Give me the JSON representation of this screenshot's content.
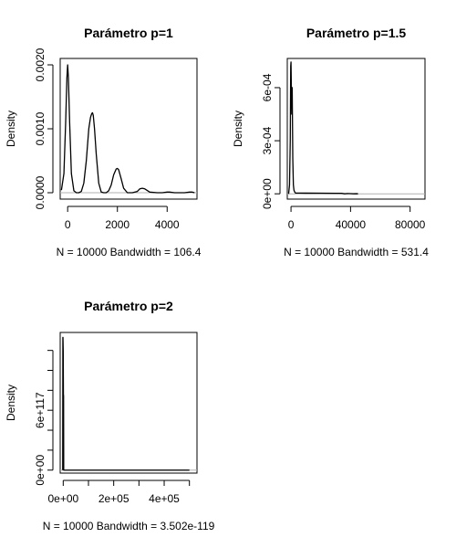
{
  "chart_data": [
    {
      "type": "line",
      "title": "Parámetro p=1",
      "ylabel": "Density",
      "xlabel": "N = 10000   Bandwidth = 106.4",
      "xlim": [
        -300,
        5200
      ],
      "ylim": [
        -0.0001,
        0.0021
      ],
      "xticks": [
        0,
        2000,
        4000
      ],
      "xtick_labels": [
        "0",
        "2000",
        "4000"
      ],
      "yticks": [
        0,
        0.001,
        0.002
      ],
      "ytick_labels": [
        "0.0000",
        "0.0010",
        "0.0020"
      ],
      "grid": false,
      "series": [
        {
          "x": [
            -250,
            -150,
            -80,
            -30,
            0,
            30,
            80,
            150,
            250,
            350,
            450,
            550,
            650,
            750,
            850,
            920,
            970,
            1000,
            1030,
            1080,
            1150,
            1250,
            1350,
            1450,
            1550,
            1650,
            1750,
            1850,
            1950,
            2000,
            2050,
            2150,
            2250,
            2400,
            2600,
            2800,
            2900,
            3000,
            3100,
            3300,
            3600,
            3800,
            4000,
            4100,
            4300,
            4700,
            4900,
            5000,
            5100
          ],
          "y": [
            4e-05,
            0.0003,
            0.0011,
            0.0018,
            0.002,
            0.0018,
            0.0011,
            0.0003,
            3e-05,
            0.0,
            0.0,
            2e-05,
            0.00015,
            0.0005,
            0.001,
            0.00118,
            0.00124,
            0.00125,
            0.00121,
            0.001,
            0.0006,
            0.00015,
            1e-05,
            0.0,
            0.0,
            3e-05,
            0.00012,
            0.00028,
            0.00037,
            0.00038,
            0.00036,
            0.00022,
            7e-05,
            0.0,
            0.0,
            2e-05,
            6e-05,
            7e-05,
            6e-05,
            1e-05,
            0.0,
            0.0,
            1e-05,
            1e-05,
            0.0,
            0.0,
            1e-05,
            1e-05,
            0.0
          ]
        }
      ]
    },
    {
      "type": "line",
      "title": "Parámetro p=1.5",
      "ylabel": "Density",
      "xlabel": "N = 10000   Bandwidth = 531.4",
      "xlim": [
        -2500,
        90000
      ],
      "ylim": [
        -3e-05,
        0.000765
      ],
      "xticks": [
        0,
        40000,
        80000
      ],
      "xtick_labels": [
        "0",
        "40000",
        "80000"
      ],
      "yticks": [
        0,
        0.0003,
        0.0006
      ],
      "ytick_labels": [
        "0e+00",
        "3e-04",
        "6e-04"
      ],
      "grid": false,
      "series": [
        {
          "x": [
            -1600,
            -1000,
            -500,
            -200,
            0,
            200,
            500,
            800,
            1200,
            1600,
            2000,
            2500,
            3000,
            4000,
            6000,
            10000,
            20000,
            30000,
            34000,
            36000,
            38000,
            40000,
            42000,
            44000,
            45000
          ],
          "y": [
            0.0,
            5e-05,
            0.0003,
            0.00072,
            0.000745,
            0.00062,
            0.00045,
            0.0006,
            0.0002,
            5e-05,
            2e-05,
            1e-05,
            4.5e-06,
            4.2e-06,
            4e-06,
            3.8e-06,
            3.5e-06,
            3e-06,
            2.8e-06,
            0.0,
            1.5e-06,
            8e-07,
            0.0,
            6e-07,
            0.0
          ]
        }
      ]
    },
    {
      "type": "line",
      "title": "Parámetro p=2",
      "ylabel": "Density",
      "xlabel": "N = 10000   Bandwidth = 3.502e-119",
      "xlim": [
        -12000,
        530000
      ],
      "ylim": [
        -3e+116,
        1.38e+118
      ],
      "xticks": [
        0,
        200000,
        400000
      ],
      "xtick_labels": [
        "0e+00",
        "2e+05",
        "4e+05"
      ],
      "xtick_minor": [
        0,
        100000,
        200000,
        300000,
        400000,
        500000
      ],
      "yticks": [
        0,
        6e+117
      ],
      "ytick_labels": [
        "0e+00",
        "6e+117"
      ],
      "ytick_minor": [
        0,
        2e+117,
        4e+117,
        6e+117,
        8e+117,
        1e+118,
        1.2e+118
      ],
      "grid": false,
      "series": [
        {
          "x": [
            -2000,
            -1400,
            -1000,
            0,
            800,
            1400,
            2000,
            5000,
            300000,
            500000
          ],
          "y": [
            0.0,
            1.33e+118,
            1.33e+118,
            1.2e+118,
            7.5e+117,
            7.5e+117,
            0.0,
            0.0,
            0.0,
            0.0
          ]
        }
      ]
    }
  ]
}
